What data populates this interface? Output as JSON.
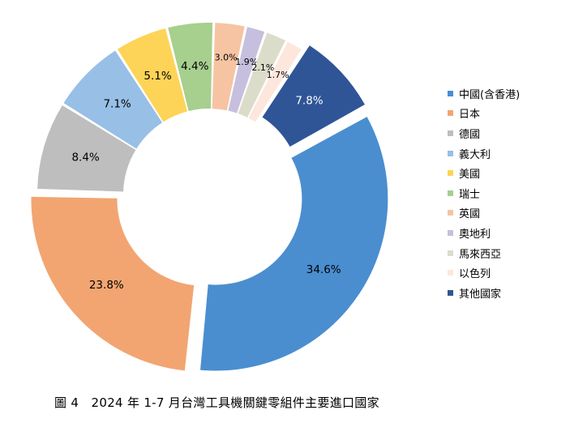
{
  "chart_data": {
    "type": "pie",
    "variant": "donut",
    "title": "",
    "categories": [
      "中國(含香港)",
      "日本",
      "德國",
      "義大利",
      "美國",
      "瑞士",
      "英國",
      "奧地利",
      "馬來西亞",
      "以色列",
      "其他國家"
    ],
    "values": [
      34.6,
      23.8,
      8.4,
      7.1,
      5.1,
      4.4,
      3.0,
      1.9,
      2.1,
      1.7,
      7.8
    ],
    "data_labels": [
      "34.6%",
      "23.8%",
      "8.4%",
      "7.1%",
      "5.1%",
      "4.4%",
      "3.0%",
      "1.9%",
      "2.1%",
      "1.7%",
      "7.8%"
    ],
    "colors": [
      "#4A8ED0",
      "#F2A571",
      "#BEBEBE",
      "#98BFE6",
      "#FDD457",
      "#A7CF8E",
      "#F6C4A3",
      "#C6BFDD",
      "#DCDCCA",
      "#FDE7DC",
      "#2F5597"
    ],
    "legend_position": "right",
    "exploded": [
      true,
      true,
      false,
      false,
      false,
      false,
      false,
      false,
      false,
      false,
      true
    ]
  },
  "caption": "圖 4　2024 年 1-7 月台灣工具機關鍵零組件主要進口國家"
}
